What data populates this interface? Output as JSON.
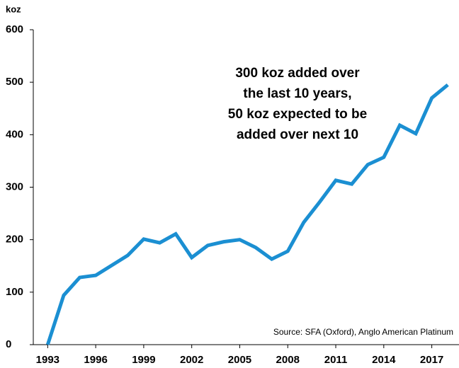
{
  "chart_data": {
    "type": "line",
    "y_unit": "koz",
    "annotation": [
      "300 koz added over",
      "the last 10 years,",
      "50 koz expected to be",
      "added over next 10"
    ],
    "source": "Source: SFA (Oxford), Anglo American Platinum",
    "x": [
      1993,
      1994,
      1995,
      1996,
      1997,
      1998,
      1999,
      2000,
      2001,
      2002,
      2003,
      2004,
      2005,
      2006,
      2007,
      2008,
      2009,
      2010,
      2011,
      2012,
      2013,
      2014,
      2015,
      2016,
      2017,
      2018
    ],
    "series": [
      {
        "name": "koz",
        "color": "#1b8fd2",
        "values": [
          0,
          94,
          128,
          132,
          151,
          170,
          201,
          194,
          211,
          166,
          189,
          196,
          200,
          185,
          163,
          178,
          233,
          272,
          313,
          306,
          343,
          357,
          418,
          402,
          470,
          495
        ]
      }
    ],
    "xlim": [
      1992.1,
      2018.7
    ],
    "xticks": [
      1993,
      1996,
      1999,
      2002,
      2005,
      2008,
      2011,
      2014,
      2017
    ],
    "ylim": [
      0,
      600
    ],
    "yticks": [
      0,
      100,
      200,
      300,
      400,
      500,
      600
    ]
  }
}
